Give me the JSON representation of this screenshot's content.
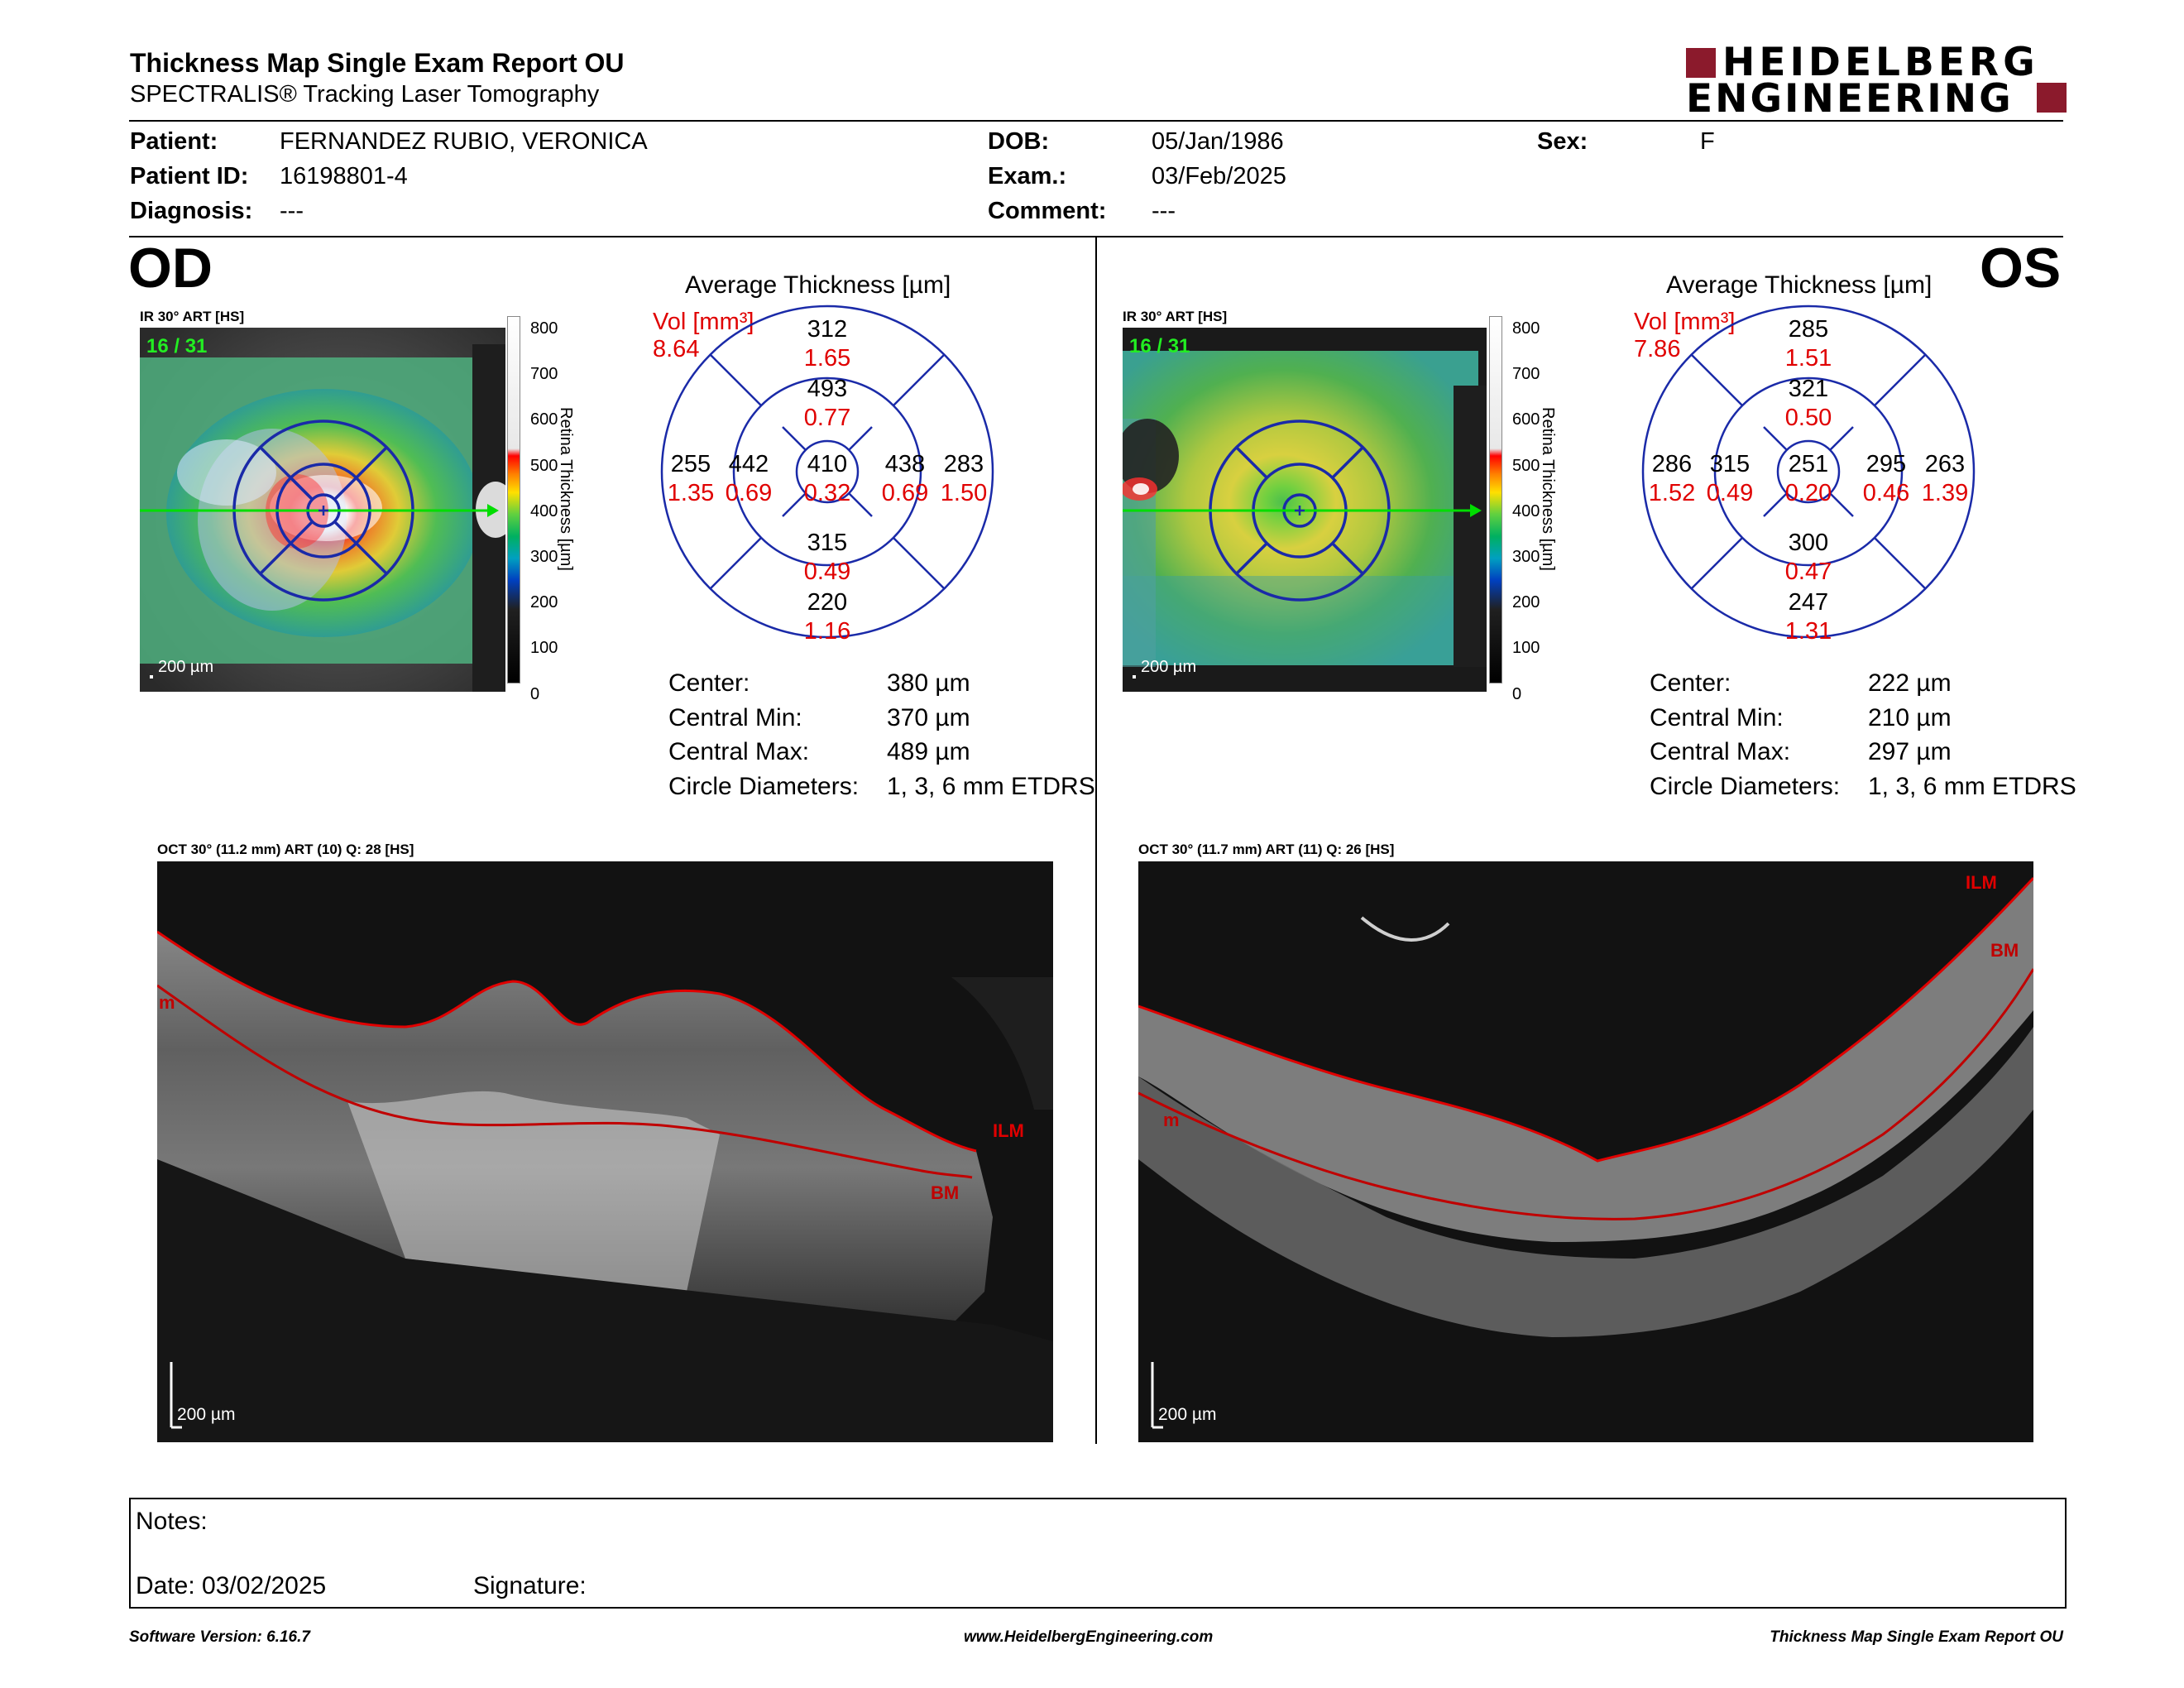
{
  "report": {
    "title": "Thickness Map Single Exam Report OU",
    "subtitle": "SPECTRALIS® Tracking Laser Tomography",
    "brand_line1": "HEIDELBERG",
    "brand_line2": "ENGINEERING",
    "brand_color": "#8b1a2c"
  },
  "patient": {
    "patient_label": "Patient:",
    "patient_value": "FERNANDEZ RUBIO, VERONICA",
    "id_label": "Patient ID:",
    "id_value": "16198801-4",
    "diag_label": "Diagnosis:",
    "diag_value": "---",
    "dob_label": "DOB:",
    "dob_value": "05/Jan/1986",
    "exam_label": "Exam.:",
    "exam_value": "03/Feb/2025",
    "comment_label": "Comment:",
    "comment_value": "---",
    "sex_label": "Sex:",
    "sex_value": "F"
  },
  "od": {
    "eye": "OD",
    "ir_label": "IR 30° ART [HS]",
    "frame": "16 / 31",
    "scale": "200 µm",
    "avg_title": "Average Thickness [µm]",
    "vol_label": "Vol [mm³]",
    "vol_total": "8.64",
    "grid": {
      "center": {
        "t": "410",
        "v": "0.32"
      },
      "inner_sup": {
        "t": "493",
        "v": "0.77"
      },
      "inner_inf": {
        "t": "315",
        "v": "0.49"
      },
      "inner_left": {
        "t": "442",
        "v": "0.69"
      },
      "inner_right": {
        "t": "438",
        "v": "0.69"
      },
      "outer_sup": {
        "t": "312",
        "v": "1.65"
      },
      "outer_inf": {
        "t": "220",
        "v": "1.16"
      },
      "outer_left": {
        "t": "255",
        "v": "1.35"
      },
      "outer_right": {
        "t": "283",
        "v": "1.50"
      }
    },
    "stats": {
      "center_label": "Center:",
      "center": "380 µm",
      "min_label": "Central Min:",
      "min": "370 µm",
      "max_label": "Central Max:",
      "max": "489 µm",
      "diam_label": "Circle Diameters:",
      "diam": "1, 3, 6 mm ETDRS"
    },
    "oct_label": "OCT 30° (11.2 mm) ART (10) Q: 28 [HS]",
    "oct_scale": "200 µm",
    "ilm": "ILM",
    "bm": "BM",
    "ilm_partial": "m"
  },
  "os": {
    "eye": "OS",
    "ir_label": "IR 30° ART [HS]",
    "frame": "16 / 31",
    "scale": "200 µm",
    "avg_title": "Average Thickness [µm]",
    "vol_label": "Vol [mm³]",
    "vol_total": "7.86",
    "grid": {
      "center": {
        "t": "251",
        "v": "0.20"
      },
      "inner_sup": {
        "t": "321",
        "v": "0.50"
      },
      "inner_inf": {
        "t": "300",
        "v": "0.47"
      },
      "inner_left": {
        "t": "315",
        "v": "0.49"
      },
      "inner_right": {
        "t": "295",
        "v": "0.46"
      },
      "outer_sup": {
        "t": "285",
        "v": "1.51"
      },
      "outer_inf": {
        "t": "247",
        "v": "1.31"
      },
      "outer_left": {
        "t": "286",
        "v": "1.52"
      },
      "outer_right": {
        "t": "263",
        "v": "1.39"
      }
    },
    "stats": {
      "center_label": "Center:",
      "center": "222 µm",
      "min_label": "Central Min:",
      "min": "210 µm",
      "max_label": "Central Max:",
      "max": "297 µm",
      "diam_label": "Circle Diameters:",
      "diam": "1, 3, 6 mm ETDRS"
    },
    "oct_label": "OCT 30° (11.7 mm) ART (11) Q: 26 [HS]",
    "oct_scale": "200 µm",
    "ilm": "ILM",
    "bm": "BM",
    "ilm_partial": "m"
  },
  "colorbar": {
    "ticks": [
      "800",
      "700",
      "600",
      "500",
      "400",
      "300",
      "200",
      "100",
      "0"
    ],
    "title": "Retina Thickness [µm]"
  },
  "notes": {
    "notes_label": "Notes:",
    "date_label": "Date: 03/02/2025",
    "signature_label": "Signature:"
  },
  "footer": {
    "version": "Software Version: 6.16.7",
    "url": "www.HeidelbergEngineering.com",
    "title": "Thickness Map Single Exam Report OU"
  }
}
